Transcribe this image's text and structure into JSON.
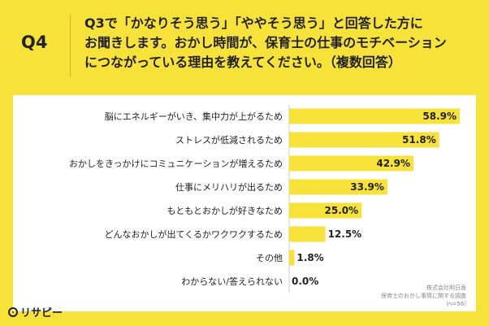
{
  "header": {
    "q_label": "Q4",
    "question_lines": [
      "Q3で「かなりそう思う」「ややそう思う」と回答した方に",
      "お聞きします。おかし時間が、保育士の仕事のモチベーション",
      "につながっている理由を教えてください。（複数回答）"
    ]
  },
  "colors": {
    "background": "#f7e23a",
    "bar": "#f7e23a",
    "card": "#ffffff"
  },
  "chart_data": {
    "type": "bar",
    "orientation": "horizontal",
    "categories": [
      "脳にエネルギーがいき、集中力が上がるため",
      "ストレスが低減されるため",
      "おかしをきっかけにコミュニケーションが増えるため",
      "仕事にメリハリが出るため",
      "もともとおかしが好きなため",
      "どんなおかしが出てくるかワクワクするため",
      "その他",
      "わからない/答えられない"
    ],
    "values": [
      58.9,
      51.8,
      42.9,
      33.9,
      25.0,
      12.5,
      1.8,
      0.0
    ],
    "value_labels": [
      "58.9%",
      "51.8%",
      "42.9%",
      "33.9%",
      "25.0%",
      "12.5%",
      "1.8%",
      "0.0%"
    ],
    "xlim": [
      0,
      60
    ]
  },
  "source": {
    "lines": [
      "株式会社明日香",
      "保育士のおかし事情に関する調査",
      "(n=56)"
    ]
  },
  "logo": {
    "text": "リサピー"
  }
}
